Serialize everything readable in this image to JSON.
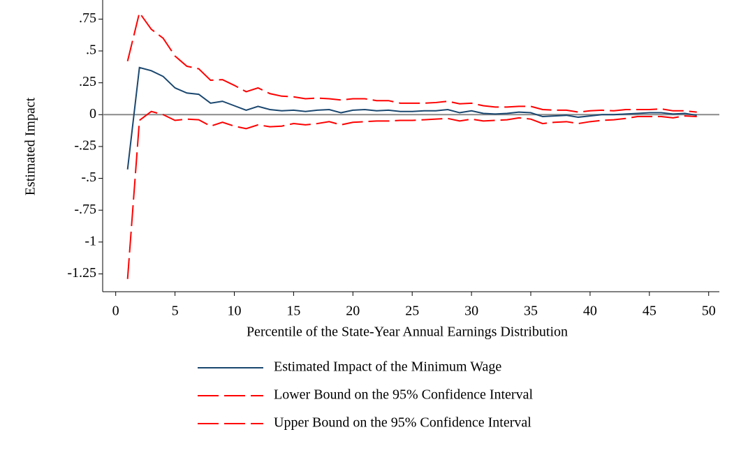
{
  "chart_data": {
    "type": "line",
    "x_label": "Percentile of the State-Year Annual Earnings Distribution",
    "y_label": "Estimated Impact",
    "x": [
      1,
      2,
      3,
      4,
      5,
      6,
      7,
      8,
      9,
      10,
      11,
      12,
      13,
      14,
      15,
      16,
      17,
      18,
      19,
      20,
      21,
      22,
      23,
      24,
      25,
      26,
      27,
      28,
      29,
      30,
      31,
      32,
      33,
      34,
      35,
      36,
      37,
      38,
      39,
      40,
      41,
      42,
      43,
      44,
      45,
      46,
      47,
      48,
      49
    ],
    "series": [
      {
        "name": "Estimated Impact of the Minimum Wage",
        "color": "#1a476f",
        "style": "solid",
        "values": [
          -0.43,
          0.37,
          0.345,
          0.3,
          0.21,
          0.17,
          0.16,
          0.09,
          0.105,
          0.07,
          0.035,
          0.065,
          0.04,
          0.03,
          0.035,
          0.025,
          0.035,
          0.04,
          0.015,
          0.035,
          0.04,
          0.03,
          0.035,
          0.025,
          0.025,
          0.03,
          0.03,
          0.04,
          0.015,
          0.03,
          0.01,
          0.005,
          0.01,
          0.02,
          0.015,
          -0.015,
          -0.01,
          -0.005,
          -0.02,
          -0.01,
          0,
          0,
          0.005,
          0.01,
          0.015,
          0.015,
          0.005,
          0.01,
          -0.005
        ]
      },
      {
        "name": "Lower Bound on the 95% Confidence Interval",
        "color": "#ff0000",
        "style": "dashed",
        "values": [
          -1.29,
          -0.045,
          0.025,
          0,
          -0.045,
          -0.035,
          -0.04,
          -0.09,
          -0.06,
          -0.09,
          -0.11,
          -0.08,
          -0.095,
          -0.09,
          -0.07,
          -0.08,
          -0.07,
          -0.055,
          -0.08,
          -0.06,
          -0.055,
          -0.05,
          -0.05,
          -0.045,
          -0.045,
          -0.04,
          -0.035,
          -0.03,
          -0.05,
          -0.035,
          -0.05,
          -0.045,
          -0.04,
          -0.025,
          -0.035,
          -0.07,
          -0.06,
          -0.055,
          -0.07,
          -0.055,
          -0.045,
          -0.04,
          -0.03,
          -0.015,
          -0.015,
          -0.015,
          -0.025,
          -0.01,
          -0.015
        ]
      },
      {
        "name": "Upper Bound on the 95% Confidence Interval",
        "color": "#ff0000",
        "style": "dashed",
        "values": [
          0.42,
          0.8,
          0.67,
          0.6,
          0.46,
          0.38,
          0.36,
          0.27,
          0.275,
          0.23,
          0.18,
          0.21,
          0.165,
          0.145,
          0.14,
          0.125,
          0.13,
          0.125,
          0.115,
          0.125,
          0.125,
          0.11,
          0.11,
          0.09,
          0.09,
          0.09,
          0.095,
          0.105,
          0.085,
          0.09,
          0.07,
          0.06,
          0.06,
          0.065,
          0.065,
          0.04,
          0.035,
          0.035,
          0.02,
          0.03,
          0.035,
          0.03,
          0.04,
          0.04,
          0.04,
          0.045,
          0.03,
          0.03,
          0.02
        ]
      }
    ],
    "xlim": [
      -1.1,
      50.9
    ],
    "ylim": [
      -1.39,
      0.9
    ],
    "xticks": [
      0,
      5,
      10,
      15,
      20,
      25,
      30,
      35,
      40,
      45,
      50
    ],
    "yticks": [
      {
        "value": 0.75,
        "label": ".75"
      },
      {
        "value": 0.5,
        "label": ".5"
      },
      {
        "value": 0.25,
        "label": ".25"
      },
      0,
      {
        "value": -0.25,
        "label": "-.25"
      },
      {
        "value": -0.5,
        "label": "-.5"
      },
      {
        "value": -0.75,
        "label": "-.75"
      },
      -1,
      {
        "value": -1.25,
        "label": "-1.25"
      }
    ],
    "yline": 0,
    "grid": false,
    "legend": "bottom"
  }
}
